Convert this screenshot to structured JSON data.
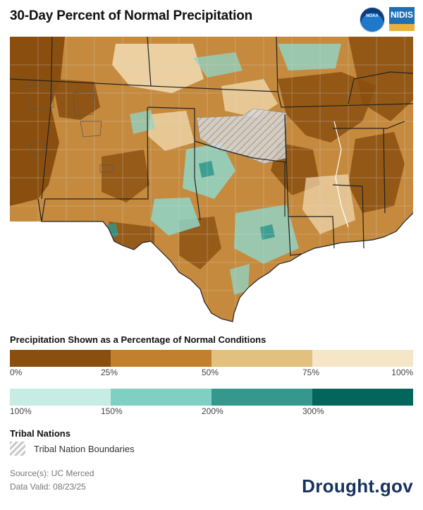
{
  "header": {
    "title": "30-Day Percent of Normal Precipitation",
    "noaa_logo_text": "NOAA",
    "nidis_logo_text": "NIDIS"
  },
  "legend": {
    "title": "Precipitation Shown as a Percentage of Normal Conditions",
    "dry_bins": {
      "colors": [
        "#8a4f0f",
        "#c27f2e",
        "#e2c07e",
        "#f6e6c8"
      ],
      "ticks": [
        "0%",
        "25%",
        "50%",
        "75%",
        "100%"
      ]
    },
    "wet_bins": {
      "colors": [
        "#c7ebe5",
        "#7fd0c2",
        "#36978d",
        "#03665c"
      ],
      "ticks": [
        "100%",
        "150%",
        "200%",
        "300%"
      ]
    }
  },
  "tribal": {
    "title": "Tribal Nations",
    "label": "Tribal Nation Boundaries"
  },
  "footer": {
    "source": "Source(s): UC Merced",
    "valid": "Data Valid: 08/23/25",
    "site": "Drought.gov"
  },
  "map": {
    "region": "South-central United States",
    "land_color": "#c58a3e",
    "very_dry_color": "#8a4f0f",
    "near_normal_color": "#f2dcb3",
    "wet_color": "#8fd6c9",
    "water_color": "#ffffff",
    "boundary_color": "#222222",
    "county_color": "#d7d7d7"
  }
}
